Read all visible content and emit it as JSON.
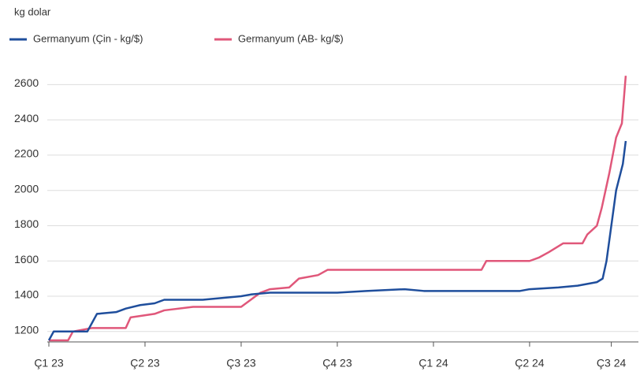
{
  "chart_data": {
    "type": "line",
    "y_label": "kg dolar",
    "series": [
      {
        "name": "Germanyum (Çin - kg/$)",
        "color": "#1f4e9c",
        "x": [
          0,
          0.05,
          0.4,
          0.45,
          0.5,
          0.7,
          0.8,
          0.95,
          1.1,
          1.2,
          1.6,
          1.8,
          2.0,
          2.1,
          2.3,
          3.0,
          3.3,
          3.7,
          3.9,
          4.9,
          5.0,
          5.3,
          5.5,
          5.7,
          5.76,
          5.8,
          5.85,
          5.9,
          5.97,
          6.0
        ],
        "values": [
          1150,
          1200,
          1200,
          1250,
          1300,
          1310,
          1330,
          1350,
          1360,
          1380,
          1380,
          1390,
          1400,
          1410,
          1420,
          1420,
          1430,
          1440,
          1430,
          1430,
          1440,
          1450,
          1460,
          1480,
          1500,
          1600,
          1800,
          2000,
          2150,
          2280
        ]
      },
      {
        "name": "Germanyum (AB- kg/$)",
        "color": "#e0577a",
        "x": [
          0,
          0.2,
          0.25,
          0.45,
          0.8,
          0.85,
          1.1,
          1.2,
          1.5,
          2.0,
          2.1,
          2.2,
          2.3,
          2.5,
          2.6,
          2.8,
          2.9,
          4.5,
          4.55,
          5.0,
          5.1,
          5.2,
          5.35,
          5.55,
          5.6,
          5.7,
          5.75,
          5.83,
          5.9,
          5.96,
          6.0
        ],
        "values": [
          1150,
          1150,
          1200,
          1220,
          1220,
          1280,
          1300,
          1320,
          1340,
          1340,
          1380,
          1420,
          1440,
          1450,
          1500,
          1520,
          1550,
          1550,
          1600,
          1600,
          1620,
          1650,
          1700,
          1700,
          1750,
          1800,
          1900,
          2100,
          2300,
          2380,
          2650
        ]
      }
    ],
    "xlim": [
      0,
      6.05
    ],
    "xticks": [
      {
        "value": 0,
        "label": "Ç1 23"
      },
      {
        "value": 1,
        "label": "Ç2 23"
      },
      {
        "value": 2,
        "label": "Ç3 23"
      },
      {
        "value": 3,
        "label": "Ç4 23"
      },
      {
        "value": 4,
        "label": "Ç1 24"
      },
      {
        "value": 5,
        "label": "Ç2 24"
      },
      {
        "value": 5.85,
        "label": "Ç3 24"
      }
    ],
    "ylim": [
      1150,
      2700
    ],
    "yticks": [
      1200,
      1400,
      1600,
      1800,
      2000,
      2200,
      2400,
      2600
    ],
    "grid": true
  }
}
